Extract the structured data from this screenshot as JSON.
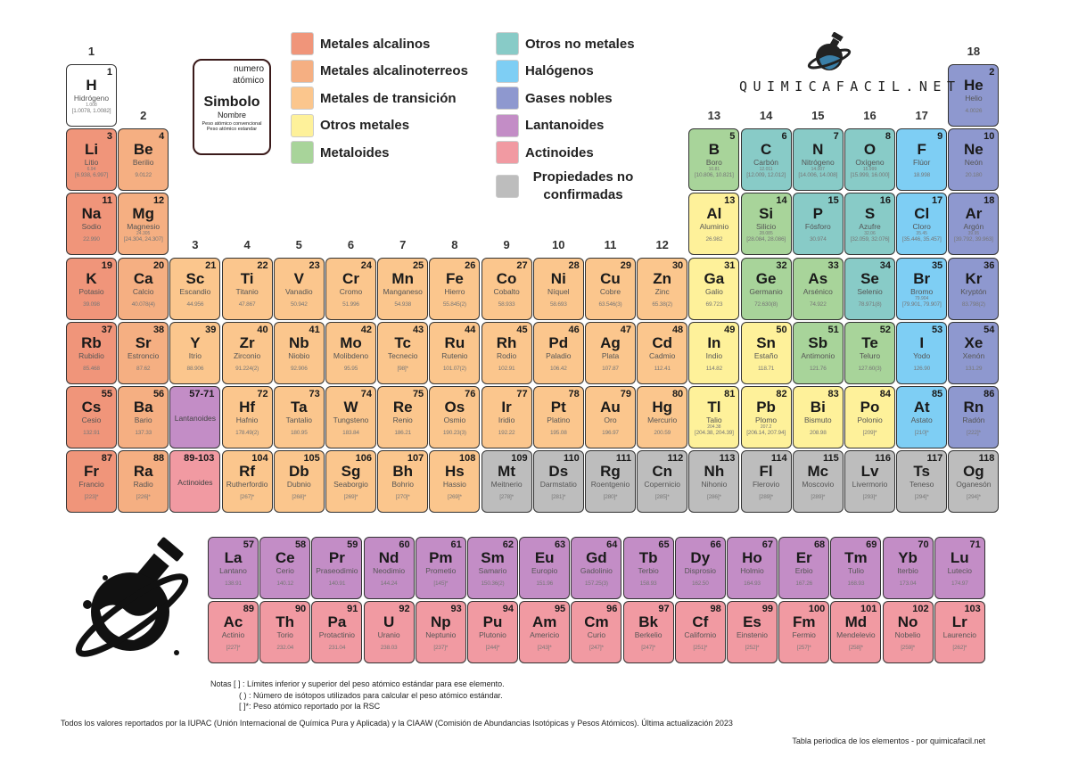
{
  "colors": {
    "alkali": "#F0957A",
    "alkaline": "#F5AF82",
    "transition": "#FBC68D",
    "other_metal": "#FEF19A",
    "metalloid": "#A8D49A",
    "nonmetal": "#88CBC7",
    "halogen": "#7ECEF4",
    "noble": "#8E98CF",
    "lanthanide": "#C38DC6",
    "actinide": "#F19AA2",
    "unknown": "#BDBDBD",
    "hydrogen": "#FFFFFF"
  },
  "legend": [
    {
      "label": "Metales alcalinos",
      "cat": "alkali"
    },
    {
      "label": "Metales alcalinoterreos",
      "cat": "alkaline"
    },
    {
      "label": "Metales de transición",
      "cat": "transition"
    },
    {
      "label": "Otros metales",
      "cat": "other_metal"
    },
    {
      "label": "Metaloides",
      "cat": "metalloid"
    },
    {
      "label": "Otros no metales",
      "cat": "nonmetal"
    },
    {
      "label": "Halógenos",
      "cat": "halogen"
    },
    {
      "label": "Gases nobles",
      "cat": "noble"
    },
    {
      "label": "Lantanoides",
      "cat": "lanthanide"
    },
    {
      "label": "Actinoides",
      "cat": "actinide"
    },
    {
      "label": "Propiedades no confirmadas",
      "cat": "unknown"
    }
  ],
  "key": {
    "number": "numero atómico",
    "symbol": "Simbolo",
    "name": "Nombre",
    "conv": "Peso atómico convencional",
    "std": "Peso atómico estandar"
  },
  "logo": {
    "text": "QUIMICAFACIL.NET"
  },
  "groups": [
    "1",
    "2",
    "3",
    "4",
    "5",
    "6",
    "7",
    "8",
    "9",
    "10",
    "11",
    "12",
    "13",
    "14",
    "15",
    "16",
    "17",
    "18"
  ],
  "placeholders": [
    {
      "range": "57-71",
      "label": "Lantanoides",
      "cat": "lanthanide"
    },
    {
      "range": "89-103",
      "label": "Actinoides",
      "cat": "actinide"
    }
  ],
  "elements": [
    {
      "z": 1,
      "s": "H",
      "n": "Hidrógeno",
      "c": "1.008",
      "w": "[1.0078, 1.0082]",
      "t": "hydrogen",
      "p": 1,
      "g": 1
    },
    {
      "z": 2,
      "s": "He",
      "n": "Helio",
      "w": "4.0026",
      "t": "noble",
      "p": 1,
      "g": 18
    },
    {
      "z": 3,
      "s": "Li",
      "n": "Litio",
      "c": "6.94",
      "w": "[6.938, 6.997]",
      "t": "alkali",
      "p": 2,
      "g": 1
    },
    {
      "z": 4,
      "s": "Be",
      "n": "Berilio",
      "w": "9.0122",
      "t": "alkaline",
      "p": 2,
      "g": 2
    },
    {
      "z": 5,
      "s": "B",
      "n": "Boro",
      "c": "10.81",
      "w": "[10.806, 10.821]",
      "t": "metalloid",
      "p": 2,
      "g": 13
    },
    {
      "z": 6,
      "s": "C",
      "n": "Carbón",
      "c": "12.011",
      "w": "[12.009, 12.012]",
      "t": "nonmetal",
      "p": 2,
      "g": 14
    },
    {
      "z": 7,
      "s": "N",
      "n": "Nitrógeno",
      "c": "14.007",
      "w": "[14.006, 14.008]",
      "t": "nonmetal",
      "p": 2,
      "g": 15
    },
    {
      "z": 8,
      "s": "O",
      "n": "Oxígeno",
      "c": "15.999",
      "w": "[15.999, 16.000]",
      "t": "nonmetal",
      "p": 2,
      "g": 16
    },
    {
      "z": 9,
      "s": "F",
      "n": "Flúor",
      "w": "18.998",
      "t": "halogen",
      "p": 2,
      "g": 17
    },
    {
      "z": 10,
      "s": "Ne",
      "n": "Neón",
      "w": "20.180",
      "t": "noble",
      "p": 2,
      "g": 18
    },
    {
      "z": 11,
      "s": "Na",
      "n": "Sodio",
      "w": "22.990",
      "t": "alkali",
      "p": 3,
      "g": 1
    },
    {
      "z": 12,
      "s": "Mg",
      "n": "Magnesio",
      "c": "24.305",
      "w": "[24.304, 24.307]",
      "t": "alkaline",
      "p": 3,
      "g": 2
    },
    {
      "z": 13,
      "s": "Al",
      "n": "Aluminio",
      "w": "26.982",
      "t": "other_metal",
      "p": 3,
      "g": 13
    },
    {
      "z": 14,
      "s": "Si",
      "n": "Silicio",
      "c": "28.085",
      "w": "[28.084, 28.086]",
      "t": "metalloid",
      "p": 3,
      "g": 14
    },
    {
      "z": 15,
      "s": "P",
      "n": "Fósforo",
      "w": "30.974",
      "t": "nonmetal",
      "p": 3,
      "g": 15
    },
    {
      "z": 16,
      "s": "S",
      "n": "Azufre",
      "c": "32.06",
      "w": "[32.059, 32.076]",
      "t": "nonmetal",
      "p": 3,
      "g": 16
    },
    {
      "z": 17,
      "s": "Cl",
      "n": "Cloro",
      "c": "35.45",
      "w": "[35.446, 35.457]",
      "t": "halogen",
      "p": 3,
      "g": 17
    },
    {
      "z": 18,
      "s": "Ar",
      "n": "Argón",
      "c": "39.95",
      "w": "[39.792, 39.963]",
      "t": "noble",
      "p": 3,
      "g": 18
    },
    {
      "z": 19,
      "s": "K",
      "n": "Potasio",
      "w": "39.098",
      "t": "alkali",
      "p": 4,
      "g": 1
    },
    {
      "z": 20,
      "s": "Ca",
      "n": "Calcio",
      "w": "40.078(4)",
      "t": "alkaline",
      "p": 4,
      "g": 2
    },
    {
      "z": 21,
      "s": "Sc",
      "n": "Escandio",
      "w": "44.956",
      "t": "transition",
      "p": 4,
      "g": 3
    },
    {
      "z": 22,
      "s": "Ti",
      "n": "Titanio",
      "w": "47.867",
      "t": "transition",
      "p": 4,
      "g": 4
    },
    {
      "z": 23,
      "s": "V",
      "n": "Vanadio",
      "w": "50.942",
      "t": "transition",
      "p": 4,
      "g": 5
    },
    {
      "z": 24,
      "s": "Cr",
      "n": "Cromo",
      "w": "51.996",
      "t": "transition",
      "p": 4,
      "g": 6
    },
    {
      "z": 25,
      "s": "Mn",
      "n": "Manganeso",
      "w": "54.938",
      "t": "transition",
      "p": 4,
      "g": 7
    },
    {
      "z": 26,
      "s": "Fe",
      "n": "Hierro",
      "w": "55.845(2)",
      "t": "transition",
      "p": 4,
      "g": 8
    },
    {
      "z": 27,
      "s": "Co",
      "n": "Cobalto",
      "w": "58.933",
      "t": "transition",
      "p": 4,
      "g": 9
    },
    {
      "z": 28,
      "s": "Ni",
      "n": "Níquel",
      "w": "58.693",
      "t": "transition",
      "p": 4,
      "g": 10
    },
    {
      "z": 29,
      "s": "Cu",
      "n": "Cobre",
      "w": "63.546(3)",
      "t": "transition",
      "p": 4,
      "g": 11
    },
    {
      "z": 30,
      "s": "Zn",
      "n": "Zinc",
      "w": "65.38(2)",
      "t": "transition",
      "p": 4,
      "g": 12
    },
    {
      "z": 31,
      "s": "Ga",
      "n": "Galio",
      "w": "69.723",
      "t": "other_metal",
      "p": 4,
      "g": 13
    },
    {
      "z": 32,
      "s": "Ge",
      "n": "Germanio",
      "w": "72.630(8)",
      "t": "metalloid",
      "p": 4,
      "g": 14
    },
    {
      "z": 33,
      "s": "As",
      "n": "Arsénico",
      "w": "74.922",
      "t": "metalloid",
      "p": 4,
      "g": 15
    },
    {
      "z": 34,
      "s": "Se",
      "n": "Selenio",
      "w": "78.971(8)",
      "t": "nonmetal",
      "p": 4,
      "g": 16
    },
    {
      "z": 35,
      "s": "Br",
      "n": "Bromo",
      "c": "79.904",
      "w": "[79.901, 79.907]",
      "t": "halogen",
      "p": 4,
      "g": 17
    },
    {
      "z": 36,
      "s": "Kr",
      "n": "Kryptón",
      "w": "83.798(2)",
      "t": "noble",
      "p": 4,
      "g": 18
    },
    {
      "z": 37,
      "s": "Rb",
      "n": "Rubidio",
      "w": "85.468",
      "t": "alkali",
      "p": 5,
      "g": 1
    },
    {
      "z": 38,
      "s": "Sr",
      "n": "Estroncio",
      "w": "87.62",
      "t": "alkaline",
      "p": 5,
      "g": 2
    },
    {
      "z": 39,
      "s": "Y",
      "n": "Itrio",
      "w": "88.906",
      "t": "transition",
      "p": 5,
      "g": 3
    },
    {
      "z": 40,
      "s": "Zr",
      "n": "Zirconio",
      "w": "91.224(2)",
      "t": "transition",
      "p": 5,
      "g": 4
    },
    {
      "z": 41,
      "s": "Nb",
      "n": "Niobio",
      "w": "92.906",
      "t": "transition",
      "p": 5,
      "g": 5
    },
    {
      "z": 42,
      "s": "Mo",
      "n": "Molibdeno",
      "w": "95.95",
      "t": "transition",
      "p": 5,
      "g": 6
    },
    {
      "z": 43,
      "s": "Tc",
      "n": "Tecnecio",
      "w": "[98]*",
      "t": "transition",
      "p": 5,
      "g": 7
    },
    {
      "z": 44,
      "s": "Ru",
      "n": "Rutenio",
      "w": "101.07(2)",
      "t": "transition",
      "p": 5,
      "g": 8
    },
    {
      "z": 45,
      "s": "Rh",
      "n": "Rodio",
      "w": "102.91",
      "t": "transition",
      "p": 5,
      "g": 9
    },
    {
      "z": 46,
      "s": "Pd",
      "n": "Paladio",
      "w": "106.42",
      "t": "transition",
      "p": 5,
      "g": 10
    },
    {
      "z": 47,
      "s": "Ag",
      "n": "Plata",
      "w": "107.87",
      "t": "transition",
      "p": 5,
      "g": 11
    },
    {
      "z": 48,
      "s": "Cd",
      "n": "Cadmio",
      "w": "112.41",
      "t": "transition",
      "p": 5,
      "g": 12
    },
    {
      "z": 49,
      "s": "In",
      "n": "Indio",
      "w": "114.82",
      "t": "other_metal",
      "p": 5,
      "g": 13
    },
    {
      "z": 50,
      "s": "Sn",
      "n": "Estaño",
      "w": "118.71",
      "t": "other_metal",
      "p": 5,
      "g": 14
    },
    {
      "z": 51,
      "s": "Sb",
      "n": "Antimonio",
      "w": "121.76",
      "t": "metalloid",
      "p": 5,
      "g": 15
    },
    {
      "z": 52,
      "s": "Te",
      "n": "Teluro",
      "w": "127.60(3)",
      "t": "metalloid",
      "p": 5,
      "g": 16
    },
    {
      "z": 53,
      "s": "I",
      "n": "Yodo",
      "w": "126.90",
      "t": "halogen",
      "p": 5,
      "g": 17
    },
    {
      "z": 54,
      "s": "Xe",
      "n": "Xenón",
      "w": "131.29",
      "t": "noble",
      "p": 5,
      "g": 18
    },
    {
      "z": 55,
      "s": "Cs",
      "n": "Cesio",
      "w": "132.91",
      "t": "alkali",
      "p": 6,
      "g": 1
    },
    {
      "z": 56,
      "s": "Ba",
      "n": "Bario",
      "w": "137.33",
      "t": "alkaline",
      "p": 6,
      "g": 2
    },
    {
      "z": 72,
      "s": "Hf",
      "n": "Hafnio",
      "w": "178.49(2)",
      "t": "transition",
      "p": 6,
      "g": 4
    },
    {
      "z": 73,
      "s": "Ta",
      "n": "Tantalio",
      "w": "180.95",
      "t": "transition",
      "p": 6,
      "g": 5
    },
    {
      "z": 74,
      "s": "W",
      "n": "Tungsteno",
      "w": "183.84",
      "t": "transition",
      "p": 6,
      "g": 6
    },
    {
      "z": 75,
      "s": "Re",
      "n": "Renio",
      "w": "186.21",
      "t": "transition",
      "p": 6,
      "g": 7
    },
    {
      "z": 76,
      "s": "Os",
      "n": "Osmio",
      "w": "190.23(3)",
      "t": "transition",
      "p": 6,
      "g": 8
    },
    {
      "z": 77,
      "s": "Ir",
      "n": "Iridio",
      "w": "192.22",
      "t": "transition",
      "p": 6,
      "g": 9
    },
    {
      "z": 78,
      "s": "Pt",
      "n": "Platino",
      "w": "195.08",
      "t": "transition",
      "p": 6,
      "g": 10
    },
    {
      "z": 79,
      "s": "Au",
      "n": "Oro",
      "w": "196.97",
      "t": "transition",
      "p": 6,
      "g": 11
    },
    {
      "z": 80,
      "s": "Hg",
      "n": "Mercurio",
      "w": "200.59",
      "t": "transition",
      "p": 6,
      "g": 12
    },
    {
      "z": 81,
      "s": "Tl",
      "n": "Talio",
      "c": "204.38",
      "w": "[204.38, 204.39]",
      "t": "other_metal",
      "p": 6,
      "g": 13
    },
    {
      "z": 82,
      "s": "Pb",
      "n": "Plomo",
      "c": "207.2",
      "w": "[206.14, 207.94]",
      "t": "other_metal",
      "p": 6,
      "g": 14
    },
    {
      "z": 83,
      "s": "Bi",
      "n": "Bismuto",
      "w": "208.98",
      "t": "other_metal",
      "p": 6,
      "g": 15
    },
    {
      "z": 84,
      "s": "Po",
      "n": "Polonio",
      "w": "[209]*",
      "t": "other_metal",
      "p": 6,
      "g": 16
    },
    {
      "z": 85,
      "s": "At",
      "n": "Astato",
      "w": "[210]*",
      "t": "halogen",
      "p": 6,
      "g": 17
    },
    {
      "z": 86,
      "s": "Rn",
      "n": "Radón",
      "w": "[222]*",
      "t": "noble",
      "p": 6,
      "g": 18
    },
    {
      "z": 87,
      "s": "Fr",
      "n": "Francio",
      "w": "[223]*",
      "t": "alkali",
      "p": 7,
      "g": 1
    },
    {
      "z": 88,
      "s": "Ra",
      "n": "Radio",
      "w": "[226]*",
      "t": "alkaline",
      "p": 7,
      "g": 2
    },
    {
      "z": 104,
      "s": "Rf",
      "n": "Rutherfordio",
      "w": "[267]*",
      "t": "transition",
      "p": 7,
      "g": 4
    },
    {
      "z": 105,
      "s": "Db",
      "n": "Dubnio",
      "w": "[268]*",
      "t": "transition",
      "p": 7,
      "g": 5
    },
    {
      "z": 106,
      "s": "Sg",
      "n": "Seaborgio",
      "w": "[269]*",
      "t": "transition",
      "p": 7,
      "g": 6
    },
    {
      "z": 107,
      "s": "Bh",
      "n": "Bohrio",
      "w": "[270]*",
      "t": "transition",
      "p": 7,
      "g": 7
    },
    {
      "z": 108,
      "s": "Hs",
      "n": "Hassio",
      "w": "[269]*",
      "t": "transition",
      "p": 7,
      "g": 8
    },
    {
      "z": 109,
      "s": "Mt",
      "n": "Meitnerio",
      "w": "[278]*",
      "t": "unknown",
      "p": 7,
      "g": 9
    },
    {
      "z": 110,
      "s": "Ds",
      "n": "Darmstatio",
      "w": "[281]*",
      "t": "unknown",
      "p": 7,
      "g": 10
    },
    {
      "z": 111,
      "s": "Rg",
      "n": "Roentgenio",
      "w": "[280]*",
      "t": "unknown",
      "p": 7,
      "g": 11
    },
    {
      "z": 112,
      "s": "Cn",
      "n": "Copernicio",
      "w": "[285]*",
      "t": "unknown",
      "p": 7,
      "g": 12
    },
    {
      "z": 113,
      "s": "Nh",
      "n": "Nihonio",
      "w": "[286]*",
      "t": "unknown",
      "p": 7,
      "g": 13
    },
    {
      "z": 114,
      "s": "Fl",
      "n": "Flerovio",
      "w": "[289]*",
      "t": "unknown",
      "p": 7,
      "g": 14
    },
    {
      "z": 115,
      "s": "Mc",
      "n": "Moscovio",
      "w": "[289]*",
      "t": "unknown",
      "p": 7,
      "g": 15
    },
    {
      "z": 116,
      "s": "Lv",
      "n": "Livermorio",
      "w": "[293]*",
      "t": "unknown",
      "p": 7,
      "g": 16
    },
    {
      "z": 117,
      "s": "Ts",
      "n": "Teneso",
      "w": "[294]*",
      "t": "unknown",
      "p": 7,
      "g": 17
    },
    {
      "z": 118,
      "s": "Og",
      "n": "Oganesón",
      "w": "[294]*",
      "t": "unknown",
      "p": 7,
      "g": 18
    }
  ],
  "lanthanides": [
    {
      "z": 57,
      "s": "La",
      "n": "Lantano",
      "w": "138.91"
    },
    {
      "z": 58,
      "s": "Ce",
      "n": "Cerio",
      "w": "140.12"
    },
    {
      "z": 59,
      "s": "Pr",
      "n": "Praseodimio",
      "w": "140.91"
    },
    {
      "z": 60,
      "s": "Nd",
      "n": "Neodimio",
      "w": "144.24"
    },
    {
      "z": 61,
      "s": "Pm",
      "n": "Prometio",
      "w": "[145]*"
    },
    {
      "z": 62,
      "s": "Sm",
      "n": "Samario",
      "w": "150.36(2)"
    },
    {
      "z": 63,
      "s": "Eu",
      "n": "Europio",
      "w": "151.96"
    },
    {
      "z": 64,
      "s": "Gd",
      "n": "Gadolinio",
      "w": "157.25(3)"
    },
    {
      "z": 65,
      "s": "Tb",
      "n": "Terbio",
      "w": "158.93"
    },
    {
      "z": 66,
      "s": "Dy",
      "n": "Disprosio",
      "w": "162.50"
    },
    {
      "z": 67,
      "s": "Ho",
      "n": "Holmio",
      "w": "164.93"
    },
    {
      "z": 68,
      "s": "Er",
      "n": "Erbio",
      "w": "167.26"
    },
    {
      "z": 69,
      "s": "Tm",
      "n": "Tulio",
      "w": "168.93"
    },
    {
      "z": 70,
      "s": "Yb",
      "n": "Iterbio",
      "w": "173.04"
    },
    {
      "z": 71,
      "s": "Lu",
      "n": "Lutecio",
      "w": "174.97"
    }
  ],
  "actinides": [
    {
      "z": 89,
      "s": "Ac",
      "n": "Actinio",
      "w": "[227]*"
    },
    {
      "z": 90,
      "s": "Th",
      "n": "Torio",
      "w": "232.04"
    },
    {
      "z": 91,
      "s": "Pa",
      "n": "Protactinio",
      "w": "231.04"
    },
    {
      "z": 92,
      "s": "U",
      "n": "Uranio",
      "w": "238.03"
    },
    {
      "z": 93,
      "s": "Np",
      "n": "Neptunio",
      "w": "[237]*"
    },
    {
      "z": 94,
      "s": "Pu",
      "n": "Plutonio",
      "w": "[244]*"
    },
    {
      "z": 95,
      "s": "Am",
      "n": "Americio",
      "w": "[243]*"
    },
    {
      "z": 96,
      "s": "Cm",
      "n": "Curio",
      "w": "[247]*"
    },
    {
      "z": 97,
      "s": "Bk",
      "n": "Berkelio",
      "w": "[247]*"
    },
    {
      "z": 98,
      "s": "Cf",
      "n": "Californio",
      "w": "[251]*"
    },
    {
      "z": 99,
      "s": "Es",
      "n": "Einstenio",
      "w": "[252]*"
    },
    {
      "z": 100,
      "s": "Fm",
      "n": "Fermio",
      "w": "[257]*"
    },
    {
      "z": 101,
      "s": "Md",
      "n": "Mendelevio",
      "w": "[258]*"
    },
    {
      "z": 102,
      "s": "No",
      "n": "Nobelio",
      "w": "[259]*"
    },
    {
      "z": 103,
      "s": "Lr",
      "n": "Laurencio",
      "w": "[262]*"
    }
  ],
  "notes": {
    "title": "Notas",
    "lines": [
      "[ ] : Límites inferior y superior del peso atómico estándar para ese elemento.",
      "( ) : Número de isótopos utilizados para calcular el peso atómico estándar.",
      "[ ]*: Peso atómico reportado por la RSC"
    ]
  },
  "footer": {
    "source": "Todos los valores reportados por la IUPAC (Unión Internacional de Química Pura y Aplicada) y la CIAAW (Comisión de Abundancias Isotópicas y Pesos Atómicos). Última actualización 2023",
    "credit": "Tabla periodica de los elementos - por quimicafacil.net"
  }
}
